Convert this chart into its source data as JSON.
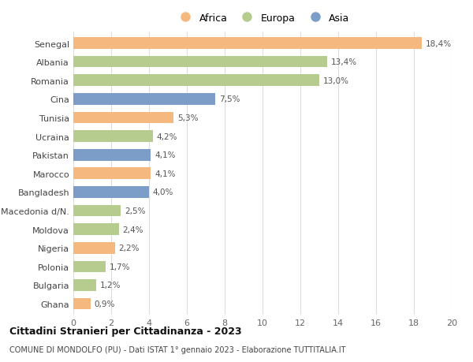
{
  "countries": [
    "Senegal",
    "Albania",
    "Romania",
    "Cina",
    "Tunisia",
    "Ucraina",
    "Pakistan",
    "Marocco",
    "Bangladesh",
    "Macedonia d/N.",
    "Moldova",
    "Nigeria",
    "Polonia",
    "Bulgaria",
    "Ghana"
  ],
  "values": [
    18.4,
    13.4,
    13.0,
    7.5,
    5.3,
    4.2,
    4.1,
    4.1,
    4.0,
    2.5,
    2.4,
    2.2,
    1.7,
    1.2,
    0.9
  ],
  "labels": [
    "18,4%",
    "13,4%",
    "13,0%",
    "7,5%",
    "5,3%",
    "4,2%",
    "4,1%",
    "4,1%",
    "4,0%",
    "2,5%",
    "2,4%",
    "2,2%",
    "1,7%",
    "1,2%",
    "0,9%"
  ],
  "continents": [
    "Africa",
    "Europa",
    "Europa",
    "Asia",
    "Africa",
    "Europa",
    "Asia",
    "Africa",
    "Asia",
    "Europa",
    "Europa",
    "Africa",
    "Europa",
    "Europa",
    "Africa"
  ],
  "colors": {
    "Africa": "#F5B97F",
    "Europa": "#B5CC8E",
    "Asia": "#7B9DC7"
  },
  "legend_labels": [
    "Africa",
    "Europa",
    "Asia"
  ],
  "legend_colors": [
    "#F5B97F",
    "#B5CC8E",
    "#7B9DC7"
  ],
  "xlim": [
    0,
    20
  ],
  "xticks": [
    0,
    2,
    4,
    6,
    8,
    10,
    12,
    14,
    16,
    18,
    20
  ],
  "title": "Cittadini Stranieri per Cittadinanza - 2023",
  "subtitle": "COMUNE DI MONDOLFO (PU) - Dati ISTAT 1° gennaio 2023 - Elaborazione TUTTITALIA.IT",
  "bg_color": "#ffffff",
  "grid_color": "#dddddd"
}
